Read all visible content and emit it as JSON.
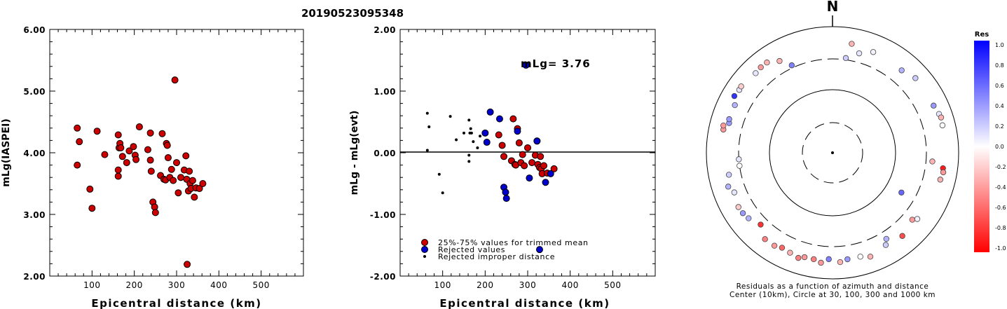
{
  "title": "20190523095348",
  "chart_data": [
    {
      "type": "scatter",
      "title": "",
      "xlabel": "Epicentral distance (km)",
      "ylabel": "mLg(IASPEI)",
      "xlim": [
        0,
        600
      ],
      "ylim": [
        2.0,
        6.0
      ],
      "x_ticks": [
        "100",
        "200",
        "300",
        "400",
        "500"
      ],
      "y_ticks": [
        "2.00",
        "3.00",
        "4.00",
        "5.00",
        "6.00"
      ],
      "series": [
        {
          "color": "#cc0000",
          "points": [
            [
              65,
              4.4
            ],
            [
              70,
              4.18
            ],
            [
              65,
              3.8
            ],
            [
              95,
              3.41
            ],
            [
              100,
              3.1
            ],
            [
              112,
              4.35
            ],
            [
              130,
              3.97
            ],
            [
              162,
              4.29
            ],
            [
              164,
              4.08
            ],
            [
              166,
              4.15
            ],
            [
              168,
              4.08
            ],
            [
              162,
              3.72
            ],
            [
              162,
              3.62
            ],
            [
              172,
              3.94
            ],
            [
              182,
              3.84
            ],
            [
              188,
              4.03
            ],
            [
              198,
              4.1
            ],
            [
              202,
              3.96
            ],
            [
              204,
              3.89
            ],
            [
              212,
              4.42
            ],
            [
              232,
              4.05
            ],
            [
              238,
              4.32
            ],
            [
              238,
              3.88
            ],
            [
              240,
              3.7
            ],
            [
              244,
              3.2
            ],
            [
              248,
              3.12
            ],
            [
              250,
              3.03
            ],
            [
              262,
              3.63
            ],
            [
              266,
              4.31
            ],
            [
              270,
              3.57
            ],
            [
              274,
              3.56
            ],
            [
              276,
              4.15
            ],
            [
              278,
              4.12
            ],
            [
              280,
              3.92
            ],
            [
              284,
              3.6
            ],
            [
              288,
              3.73
            ],
            [
              292,
              3.55
            ],
            [
              296,
              5.18
            ],
            [
              300,
              3.84
            ],
            [
              304,
              3.35
            ],
            [
              310,
              3.6
            ],
            [
              318,
              3.72
            ],
            [
              322,
              3.95
            ],
            [
              324,
              3.57
            ],
            [
              328,
              3.38
            ],
            [
              330,
              3.7
            ],
            [
              332,
              3.5
            ],
            [
              334,
              3.42
            ],
            [
              338,
              3.55
            ],
            [
              342,
              3.28
            ],
            [
              346,
              3.43
            ],
            [
              354,
              3.42
            ],
            [
              362,
              3.5
            ],
            [
              325,
              2.19
            ]
          ]
        }
      ]
    },
    {
      "type": "scatter",
      "title": "",
      "xlabel": "Epicentral distance (km)",
      "ylabel": "mLg - mLg(evt)",
      "xlim": [
        0,
        600
      ],
      "ylim": [
        -2.0,
        2.0
      ],
      "x_ticks": [
        "100",
        "200",
        "300",
        "400",
        "500"
      ],
      "y_ticks": [
        "-2.00",
        "-1.00",
        "0.00",
        "1.00",
        "2.00"
      ],
      "annotation": "mLg= 3.76",
      "legend": [
        "25%-75% values for trimmed mean",
        "Rejected values",
        "Rejected improper distance"
      ],
      "legend_position": "bottom-left",
      "series": [
        {
          "name": "25%-75% values for trimmed mean",
          "color": "#cc0000",
          "points": [
            [
              232,
              0.29
            ],
            [
              240,
              0.12
            ],
            [
              244,
              -0.06
            ],
            [
              262,
              -0.13
            ],
            [
              266,
              0.55
            ],
            [
              270,
              -0.19
            ],
            [
              272,
              -0.2
            ],
            [
              276,
              0.39
            ],
            [
              280,
              0.16
            ],
            [
              284,
              -0.16
            ],
            [
              288,
              -0.03
            ],
            [
              292,
              -0.21
            ],
            [
              300,
              0.08
            ],
            [
              310,
              -0.16
            ],
            [
              318,
              -0.04
            ],
            [
              322,
              0.19
            ],
            [
              324,
              -0.19
            ],
            [
              328,
              -0.24
            ],
            [
              330,
              -0.06
            ],
            [
              332,
              -0.26
            ],
            [
              334,
              -0.34
            ],
            [
              338,
              -0.21
            ],
            [
              346,
              -0.33
            ],
            [
              362,
              -0.26
            ]
          ]
        },
        {
          "name": "Rejected values",
          "color": "#0000cc",
          "points": [
            [
              200,
              0.32
            ],
            [
              204,
              0.17
            ],
            [
              212,
              0.66
            ],
            [
              234,
              0.55
            ],
            [
              244,
              -0.56
            ],
            [
              248,
              -0.64
            ],
            [
              250,
              -0.74
            ],
            [
              276,
              0.35
            ],
            [
              296,
              1.42
            ],
            [
              304,
              -0.41
            ],
            [
              322,
              0.19
            ],
            [
              328,
              -1.57
            ],
            [
              342,
              -0.48
            ],
            [
              354,
              -0.34
            ]
          ]
        },
        {
          "name": "Rejected improper distance",
          "color": "#000000",
          "points": [
            [
              64,
              0.64
            ],
            [
              68,
              0.42
            ],
            [
              64,
              0.04
            ],
            [
              92,
              -0.35
            ],
            [
              100,
              -0.65
            ],
            [
              118,
              0.59
            ],
            [
              132,
              0.21
            ],
            [
              150,
              0.32
            ],
            [
              162,
              0.53
            ],
            [
              164,
              0.32
            ],
            [
              166,
              0.39
            ],
            [
              168,
              0.32
            ],
            [
              162,
              -0.04
            ],
            [
              162,
              -0.14
            ],
            [
              172,
              0.18
            ],
            [
              182,
              0.08
            ],
            [
              188,
              0.27
            ]
          ]
        }
      ]
    },
    {
      "type": "polar",
      "title": "N",
      "caption": [
        "Residuals as a function of azimuth and distance",
        "Center (10km), Circle at 30, 100, 300 and 1000 km"
      ],
      "colorbar": {
        "title": "Res",
        "ticks": [
          "1.0",
          "0.8",
          "0.6",
          "0.4",
          "0.2",
          "0.0",
          "-0.2",
          "-0.4",
          "-0.6",
          "-0.8",
          "-1.0"
        ],
        "positive_color": "#0000ff",
        "negative_color": "#ff0000"
      },
      "points": [
        {
          "az": 8,
          "dist_km": 320,
          "res": 0.2
        },
        {
          "az": 15,
          "dist_km": 420,
          "res": 0.1
        },
        {
          "az": 22,
          "dist_km": 520,
          "res": 0.05
        },
        {
          "az": 40,
          "dist_km": 500,
          "res": 0.3
        },
        {
          "az": 48,
          "dist_km": 580,
          "res": 0.2
        },
        {
          "az": 65,
          "dist_km": 580,
          "res": 0.4
        },
        {
          "az": 70,
          "dist_km": 620,
          "res": 0.1
        },
        {
          "az": 72,
          "dist_km": 640,
          "res": -0.3
        },
        {
          "az": 76,
          "dist_km": 620,
          "res": 0.0
        },
        {
          "az": 95,
          "dist_km": 380,
          "res": -0.3
        },
        {
          "az": 98,
          "dist_km": 580,
          "res": -0.9
        },
        {
          "az": 100,
          "dist_km": 600,
          "res": -0.4
        },
        {
          "az": 104,
          "dist_km": 570,
          "res": -0.3
        },
        {
          "az": 120,
          "dist_km": 180,
          "res": 0.6
        },
        {
          "az": 128,
          "dist_km": 500,
          "res": 0.05
        },
        {
          "az": 130,
          "dist_km": 440,
          "res": -0.4
        },
        {
          "az": 140,
          "dist_km": 520,
          "res": -0.7
        },
        {
          "az": 148,
          "dist_km": 400,
          "res": 0.3
        },
        {
          "az": 150,
          "dist_km": 480,
          "res": 0.2
        },
        {
          "az": 160,
          "dist_km": 560,
          "res": -0.3
        },
        {
          "az": 165,
          "dist_km": 500,
          "res": 0.0
        },
        {
          "az": 172,
          "dist_km": 500,
          "res": 0.4
        },
        {
          "az": 176,
          "dist_km": 540,
          "res": -0.3
        },
        {
          "az": 182,
          "dist_km": 480,
          "res": 0.5
        },
        {
          "az": 186,
          "dist_km": 560,
          "res": -0.4
        },
        {
          "az": 190,
          "dist_km": 510,
          "res": -0.5
        },
        {
          "az": 195,
          "dist_km": 510,
          "res": -0.4
        },
        {
          "az": 198,
          "dist_km": 560,
          "res": -0.5
        },
        {
          "az": 203,
          "dist_km": 520,
          "res": -0.3
        },
        {
          "az": 208,
          "dist_km": 500,
          "res": -0.6
        },
        {
          "az": 212,
          "dist_km": 540,
          "res": -0.4
        },
        {
          "az": 218,
          "dist_km": 540,
          "res": -0.5
        },
        {
          "az": 225,
          "dist_km": 400,
          "res": -0.8
        },
        {
          "az": 232,
          "dist_km": 480,
          "res": 0.3
        },
        {
          "az": 236,
          "dist_km": 510,
          "res": 0.4
        },
        {
          "az": 240,
          "dist_km": 520,
          "res": -0.2
        },
        {
          "az": 248,
          "dist_km": 470,
          "res": 0.1
        },
        {
          "az": 252,
          "dist_km": 540,
          "res": 0.3
        },
        {
          "az": 258,
          "dist_km": 470,
          "res": 0.2
        },
        {
          "az": 262,
          "dist_km": 300,
          "res": 0.0
        },
        {
          "az": 266,
          "dist_km": 300,
          "res": 0.1
        },
        {
          "az": 282,
          "dist_km": 580,
          "res": -0.4
        },
        {
          "az": 284,
          "dist_km": 600,
          "res": -0.4
        },
        {
          "az": 286,
          "dist_km": 500,
          "res": 0.4
        },
        {
          "az": 288,
          "dist_km": 520,
          "res": 0.4
        },
        {
          "az": 296,
          "dist_km": 520,
          "res": 0.3
        },
        {
          "az": 300,
          "dist_km": 620,
          "res": 0.8
        },
        {
          "az": 304,
          "dist_km": 600,
          "res": 0.1
        },
        {
          "az": 306,
          "dist_km": 610,
          "res": -0.2
        },
        {
          "az": 316,
          "dist_km": 560,
          "res": 0.1
        },
        {
          "az": 320,
          "dist_km": 580,
          "res": -0.4
        },
        {
          "az": 324,
          "dist_km": 580,
          "res": -0.3
        },
        {
          "az": 330,
          "dist_km": 470,
          "res": -0.3
        },
        {
          "az": 335,
          "dist_km": 330,
          "res": 0.5
        },
        {
          "az": 10,
          "dist_km": 560,
          "res": -0.3
        }
      ]
    }
  ]
}
